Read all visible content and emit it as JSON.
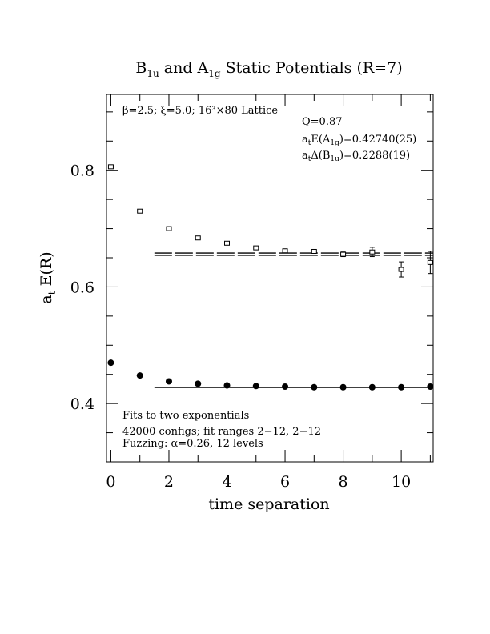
{
  "chart_data": {
    "type": "scatter",
    "title": {
      "main": "B",
      "sub1": "1u",
      "mid": " and A",
      "sub2": "1g",
      "end": " Static Potentials (R=7)"
    },
    "xlabel": "time separation",
    "ylabel": {
      "main": "a",
      "sub": "t",
      "end": " E(R)"
    },
    "xlim": [
      -0.15,
      11.1
    ],
    "ylim": [
      0.3,
      0.93
    ],
    "xticks": [
      0,
      2,
      4,
      6,
      8,
      10
    ],
    "xtick_labels": [
      "0",
      "2",
      "4",
      "6",
      "8",
      "10"
    ],
    "yticks": [
      0.4,
      0.6,
      0.8
    ],
    "ytick_labels": [
      "0.4",
      "0.6",
      "0.8"
    ],
    "grid": false,
    "annotations": {
      "lattice": "β=2.5; ξ=5.0; 16³×80 Lattice",
      "q": "Q=0.87",
      "energy": {
        "pre": "a",
        "sub_t": "t",
        "mid": "E(A",
        "sub": "1g",
        "end": ")=0.42740(25)"
      },
      "delta": {
        "pre": "a",
        "sub_t": "t",
        "mid": "Δ(B",
        "sub": "1u",
        "end": ")=0.2288(19)"
      },
      "fit1": "Fits to two exponentials",
      "fit2": "42000 configs; fit ranges 2−12, 2−12",
      "fit3": "Fuzzing: α=0.26, 12 levels"
    },
    "series": [
      {
        "name": "B1u",
        "marker": "open-square",
        "x": [
          0,
          1,
          2,
          3,
          4,
          5,
          6,
          7,
          8,
          9,
          10,
          11
        ],
        "y": [
          0.806,
          0.73,
          0.7,
          0.684,
          0.675,
          0.667,
          0.662,
          0.661,
          0.656,
          0.66,
          0.63,
          0.642
        ],
        "yerr": [
          0.001,
          0.001,
          0.001,
          0.001,
          0.0015,
          0.002,
          0.003,
          0.003,
          0.004,
          0.008,
          0.013,
          0.019
        ]
      },
      {
        "name": "A1g",
        "marker": "filled-circle",
        "x": [
          0,
          1,
          2,
          3,
          4,
          5,
          6,
          7,
          8,
          9,
          10,
          11
        ],
        "y": [
          0.47,
          0.448,
          0.438,
          0.434,
          0.431,
          0.43,
          0.429,
          0.428,
          0.428,
          0.428,
          0.428,
          0.429
        ],
        "yerr": [
          0,
          0,
          0,
          0,
          0,
          0,
          0,
          0,
          0,
          0,
          0,
          0
        ]
      }
    ],
    "fits": [
      {
        "series": "B1u",
        "x_start": 1.5,
        "x_end": 11.1,
        "y": 0.6562,
        "band": 0.0019,
        "style": "dashed-band"
      },
      {
        "series": "A1g",
        "x_start": 1.5,
        "x_end": 11.1,
        "y": 0.4274,
        "band": 0,
        "style": "solid"
      }
    ]
  }
}
